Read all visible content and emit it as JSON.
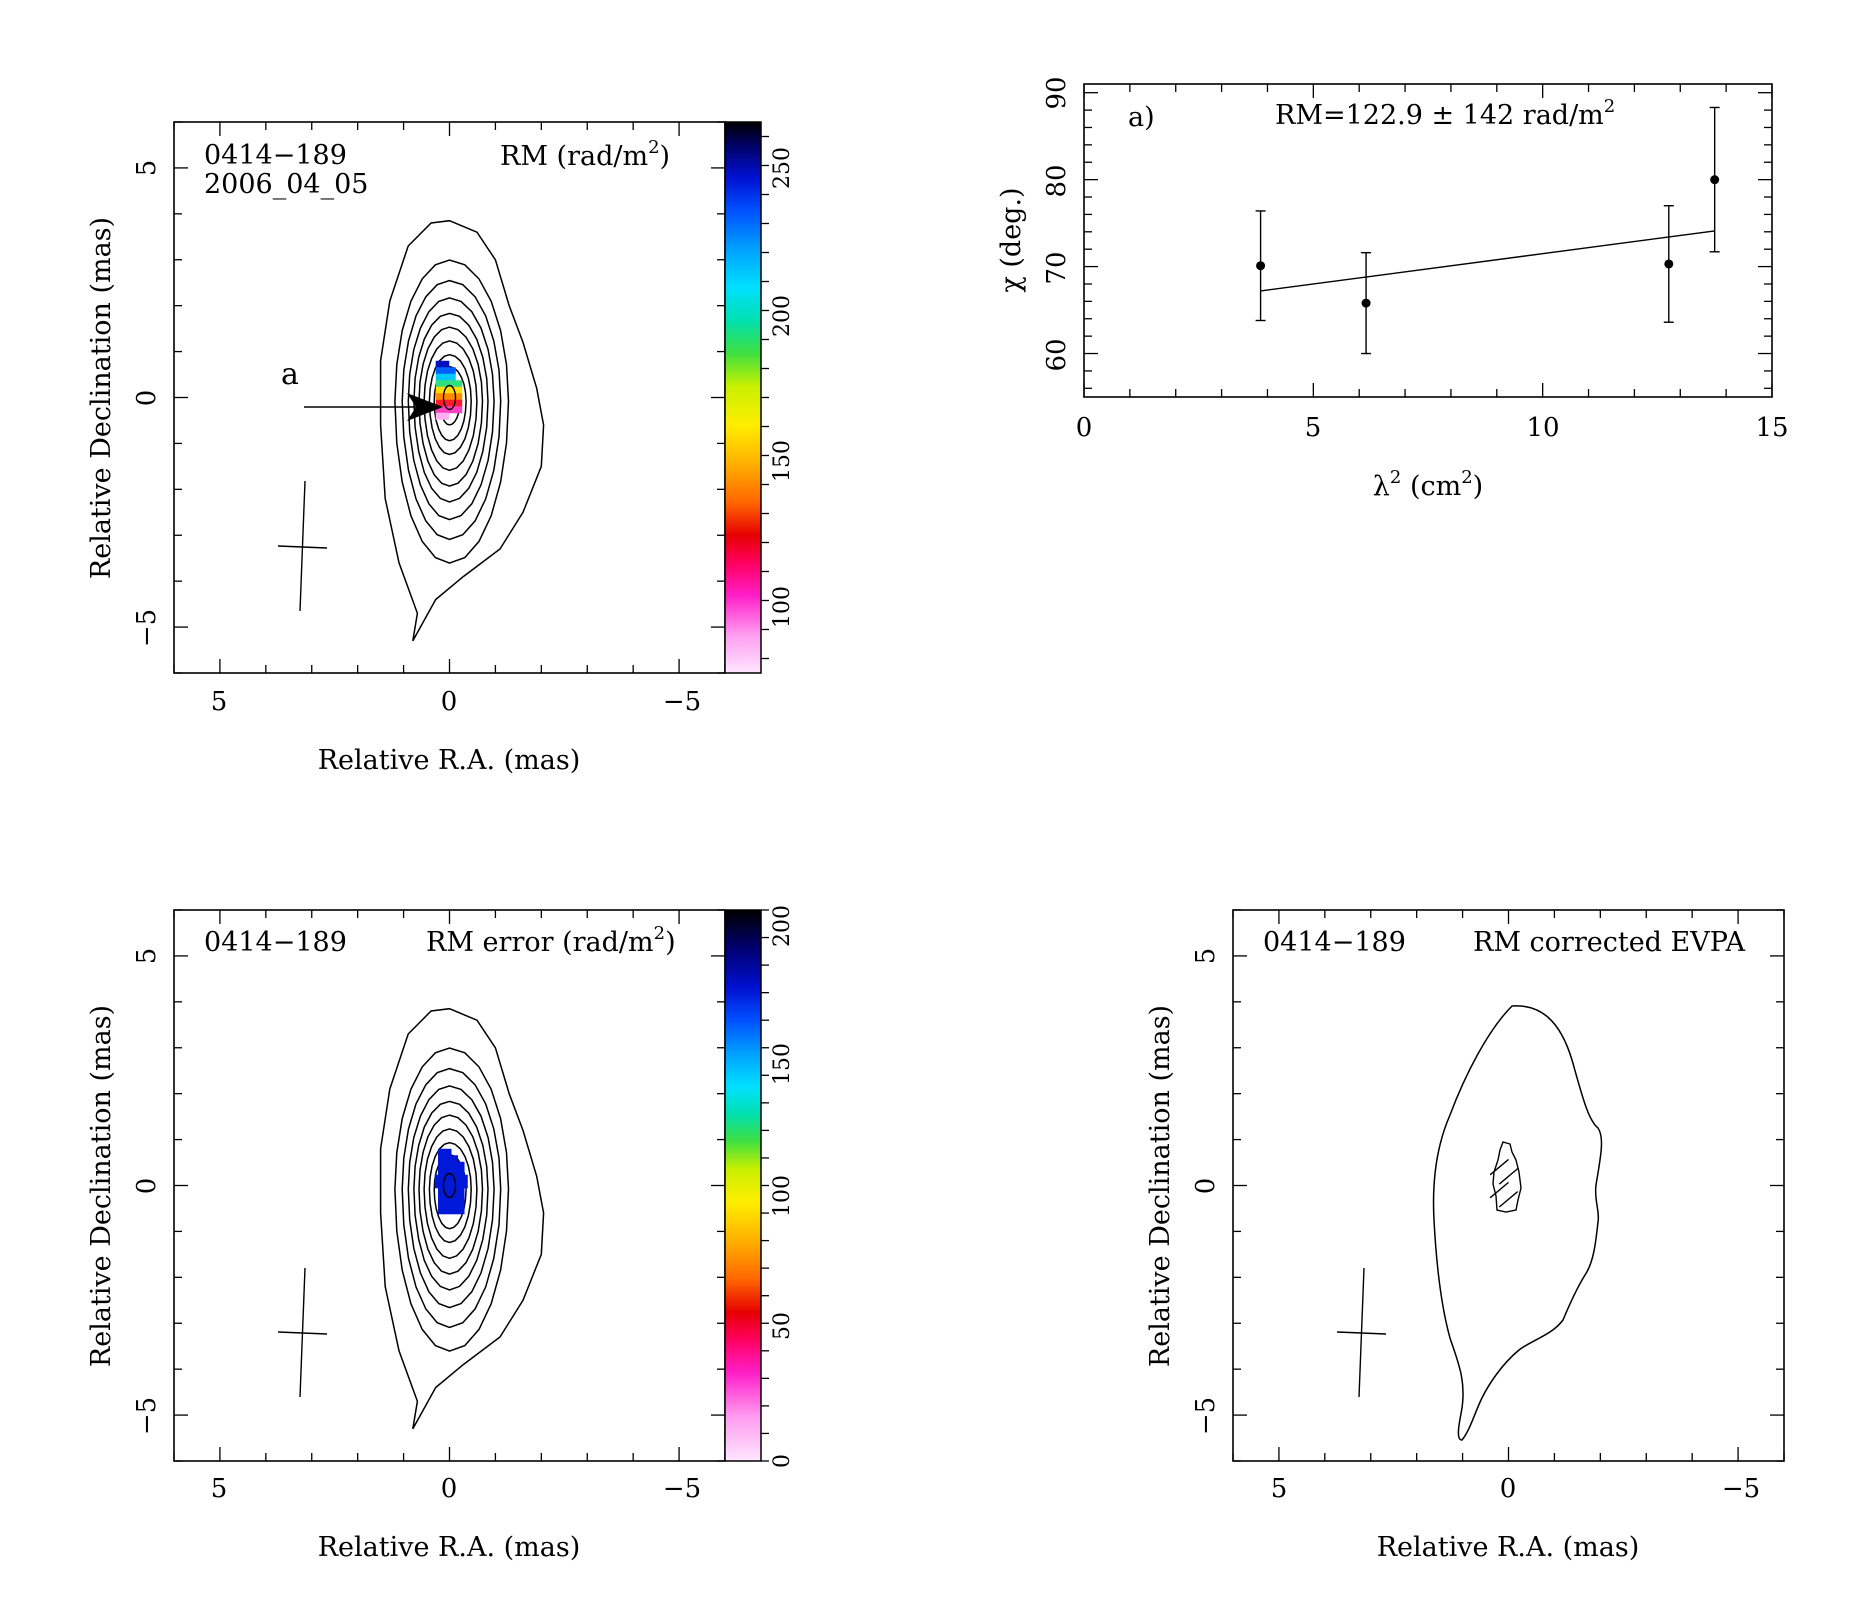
{
  "figure": {
    "panels": [
      {
        "id": "rm",
        "source": "0414−189",
        "epoch": "2006_04_05",
        "map_label": "RM (rad/m",
        "map_label_sup": "2",
        "map_label_end": ")",
        "xlabel": "Relative R.A. (mas)",
        "ylabel": "Relative Declination (mas)",
        "annotation": "a"
      },
      {
        "id": "rm-error",
        "source": "0414−189",
        "map_label": "RM error (rad/m",
        "map_label_sup": "2",
        "map_label_end": ")",
        "xlabel": "Relative R.A. (mas)",
        "ylabel": "Relative Declination (mas)"
      },
      {
        "id": "evpa",
        "source": "0414−189",
        "map_label": "RM corrected EVPA",
        "xlabel": "Relative R.A. (mas)",
        "ylabel": "Relative Declination (mas)"
      }
    ],
    "fit_panel": {
      "tag": "a)",
      "fit_text": "RM=122.9 ± 142 rad/m",
      "fit_sup": "2",
      "ylabel": "χ (deg.)",
      "xlabel_main": "λ",
      "xlabel_sup1": "2",
      "xlabel_mid": " (cm",
      "xlabel_sup2": "2",
      "xlabel_end": ")"
    }
  },
  "chart_data": [
    {
      "type": "heatmap",
      "panel": "rm",
      "source": "0414−189",
      "epoch": "2006_04_05",
      "xlabel": "Relative R.A. (mas)",
      "ylabel": "Relative Declination (mas)",
      "xlim": [
        6,
        -6
      ],
      "ylim": [
        -6,
        6
      ],
      "x_ticks": [
        "5",
        "0",
        "−5"
      ],
      "y_ticks": [
        "−5",
        "0",
        "5"
      ],
      "colorbar": {
        "label": "RM (rad/m2)",
        "range": [
          75,
          265
        ],
        "ticks": [
          100,
          150,
          200,
          250
        ]
      },
      "rm_pixels_approx": {
        "x": [
          0.0,
          0.0,
          0.0,
          0.0,
          0.0
        ],
        "y": [
          0.7,
          0.4,
          0.1,
          -0.2,
          -0.5
        ],
        "rm": [
          240,
          210,
          180,
          140,
          110
        ]
      },
      "contour_levels": 10,
      "annotation_arrow": "a"
    },
    {
      "type": "heatmap",
      "panel": "rm-error",
      "source": "0414−189",
      "xlabel": "Relative R.A. (mas)",
      "ylabel": "Relative Declination (mas)",
      "xlim": [
        6,
        -6
      ],
      "ylim": [
        -6,
        6
      ],
      "x_ticks": [
        "5",
        "0",
        "−5"
      ],
      "y_ticks": [
        "−5",
        "0",
        "5"
      ],
      "colorbar": {
        "label": "RM error (rad/m2)",
        "range": [
          0,
          200
        ],
        "ticks": [
          0,
          50,
          100,
          150,
          200
        ]
      },
      "rm_error_value_approx": 175,
      "contour_levels": 10
    },
    {
      "type": "line",
      "panel": "fit",
      "tag": "a)",
      "annotation": "RM=122.9 ± 142 rad/m2",
      "xlabel": "λ2 (cm2)",
      "ylabel": "χ (deg.)",
      "xlim": [
        0,
        15
      ],
      "ylim": [
        55,
        91
      ],
      "x_ticks": [
        0,
        5,
        10,
        15
      ],
      "y_ticks": [
        60,
        70,
        80,
        90
      ],
      "series": [
        {
          "type": "scatter",
          "x": [
            3.85,
            6.15,
            12.75,
            13.75
          ],
          "y": [
            70.1,
            65.8,
            70.3,
            80.0
          ],
          "yerr": [
            6.3,
            5.8,
            6.7,
            8.3
          ]
        },
        {
          "type": "line",
          "x": [
            3.85,
            13.75
          ],
          "y": [
            67.2,
            74.1
          ]
        }
      ]
    },
    {
      "type": "scatter",
      "panel": "evpa",
      "source": "0414−189",
      "label": "RM corrected EVPA",
      "xlabel": "Relative R.A. (mas)",
      "ylabel": "Relative Declination (mas)",
      "xlim": [
        6,
        -6
      ],
      "ylim": [
        -6,
        6
      ],
      "x_ticks": [
        "5",
        "0",
        "−5"
      ],
      "y_ticks": [
        "−5",
        "0",
        "5"
      ],
      "evpa_vectors_approx": {
        "x": [
          0.2,
          0.0,
          0.2,
          0.0
        ],
        "y": [
          0.4,
          0.2,
          -0.1,
          -0.3
        ],
        "angle_deg": [
          40,
          40,
          40,
          40
        ]
      },
      "contour_levels": 1
    }
  ]
}
